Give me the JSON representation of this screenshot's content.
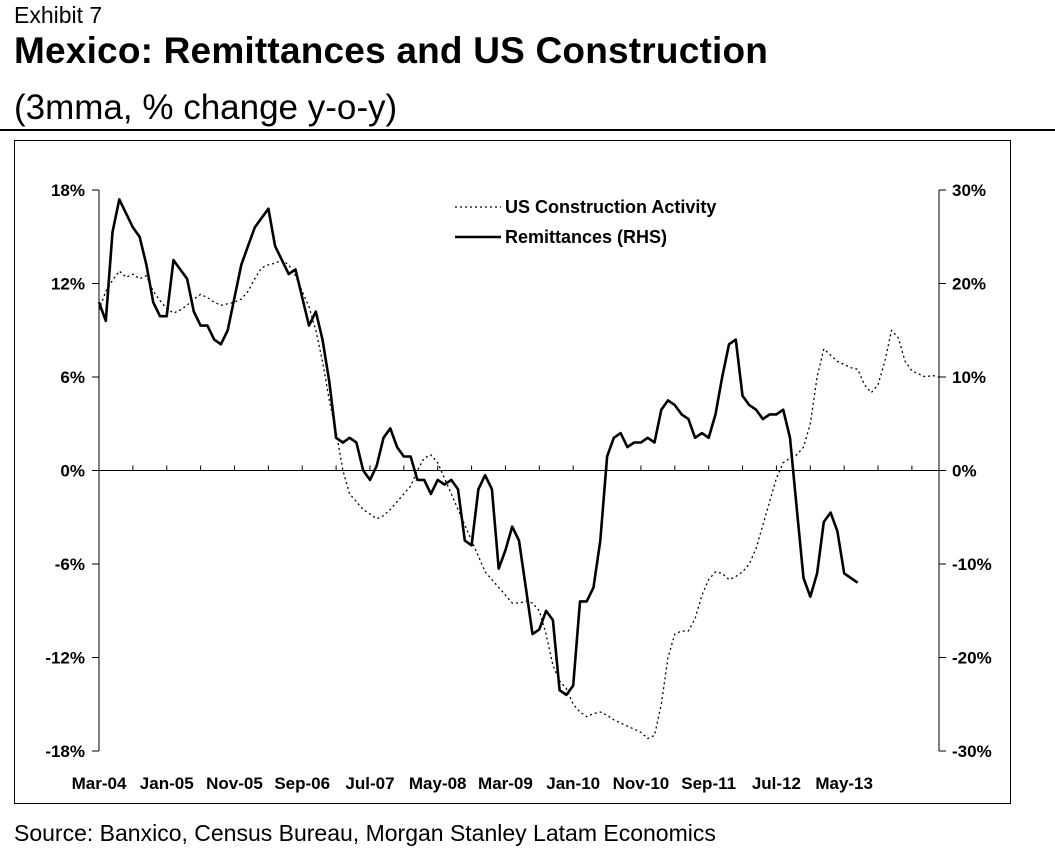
{
  "header": {
    "exhibit": "Exhibit 7",
    "title": "Mexico: Remittances and US Construction",
    "subtitle": "(3mma, % change y-o-y)"
  },
  "footer": {
    "source": "Source: Banxico, Census Bureau, Morgan Stanley Latam Economics"
  },
  "chart_data": {
    "type": "line",
    "title": "Mexico: Remittances and US Construction",
    "subtitle": "(3mma, % change y-o-y)",
    "x_tick_labels": [
      "Mar-04",
      "Jan-05",
      "Nov-05",
      "Sep-06",
      "Jul-07",
      "May-08",
      "Mar-09",
      "Jan-10",
      "Nov-10",
      "Sep-11",
      "Jul-12",
      "May-13"
    ],
    "x_start": "Mar-04",
    "x_end": "Jul-13",
    "left_axis": {
      "ticks": [
        "18%",
        "12%",
        "6%",
        "0%",
        "-6%",
        "-12%",
        "-18%"
      ],
      "ylim": [
        -18,
        18
      ]
    },
    "right_axis": {
      "ticks": [
        "30%",
        "20%",
        "10%",
        "0%",
        "-10%",
        "-20%",
        "-30%"
      ],
      "ylim": [
        -30,
        30
      ]
    },
    "grid": false,
    "legend_position": "top-center",
    "series": [
      {
        "name": "US Construction Activity",
        "axis": "left",
        "style": "dotted",
        "color": "#000000",
        "values": [
          10.3,
          11.5,
          12.2,
          12.8,
          12.4,
          12.6,
          12.3,
          12.5,
          11.5,
          10.9,
          10.4,
          10.1,
          10.3,
          10.6,
          11.0,
          11.3,
          11.1,
          10.8,
          10.6,
          10.7,
          10.8,
          11.0,
          11.5,
          12.3,
          13.0,
          13.2,
          13.3,
          13.5,
          13.2,
          12.5,
          11.5,
          10.5,
          9.0,
          7.0,
          4.5,
          2.5,
          0.0,
          -1.5,
          -2.0,
          -2.5,
          -2.8,
          -3.1,
          -2.9,
          -2.5,
          -2.0,
          -1.5,
          -1.0,
          0.0,
          0.8,
          1.0,
          0.5,
          -0.5,
          -1.5,
          -2.5,
          -3.5,
          -4.5,
          -5.5,
          -6.5,
          -7.0,
          -7.5,
          -8.0,
          -8.5,
          -8.5,
          -8.4,
          -8.5,
          -9.0,
          -10.5,
          -12.5,
          -13.5,
          -14.0,
          -15.0,
          -15.5,
          -15.8,
          -15.6,
          -15.5,
          -15.7,
          -16.0,
          -16.2,
          -16.4,
          -16.6,
          -16.8,
          -17.2,
          -17.0,
          -15.0,
          -12.0,
          -10.5,
          -10.3,
          -10.3,
          -9.5,
          -8.0,
          -7.0,
          -6.5,
          -6.6,
          -7.0,
          -6.8,
          -6.5,
          -6.0,
          -5.0,
          -3.5,
          -2.0,
          -0.5,
          0.5,
          0.8,
          1.0,
          1.5,
          3.0,
          6.0,
          7.8,
          7.4,
          7.0,
          6.8,
          6.6,
          6.5,
          5.5,
          5.0,
          5.5,
          7.0,
          9.0,
          8.5,
          7.0,
          6.4,
          6.2,
          6.0,
          6.1,
          6.0
        ]
      },
      {
        "name": "Remittances (RHS)",
        "axis": "right",
        "style": "solid",
        "color": "#000000",
        "values": [
          18.0,
          16.0,
          25.5,
          29.0,
          27.5,
          26.0,
          25.0,
          22.0,
          18.0,
          16.5,
          16.5,
          22.5,
          21.5,
          20.5,
          17.0,
          15.5,
          15.5,
          14.0,
          13.5,
          15.0,
          18.5,
          22.0,
          24.0,
          26.0,
          27.0,
          28.0,
          24.0,
          22.5,
          21.0,
          21.5,
          18.5,
          15.5,
          17.0,
          14.0,
          9.5,
          3.5,
          3.0,
          3.5,
          3.0,
          0.0,
          -1.0,
          0.5,
          3.5,
          4.5,
          2.5,
          1.5,
          1.5,
          -1.0,
          -1.0,
          -2.5,
          -1.0,
          -1.5,
          -1.0,
          -2.0,
          -7.5,
          -8.0,
          -2.0,
          -0.5,
          -2.0,
          -10.5,
          -8.5,
          -6.0,
          -7.5,
          -12.5,
          -17.5,
          -17.0,
          -15.0,
          -16.0,
          -23.5,
          -24.0,
          -23.0,
          -14.0,
          -14.0,
          -12.5,
          -7.5,
          1.5,
          3.5,
          4.0,
          2.5,
          3.0,
          3.0,
          3.5,
          3.0,
          6.5,
          7.5,
          7.0,
          6.0,
          5.5,
          3.5,
          4.0,
          3.5,
          6.0,
          10.0,
          13.5,
          14.0,
          8.0,
          7.0,
          6.5,
          5.5,
          6.0,
          6.0,
          6.5,
          3.5,
          -4.0,
          -11.5,
          -13.5,
          -11.0,
          -5.5,
          -4.5,
          -6.5,
          -11.0,
          -11.5,
          -12.0
        ]
      }
    ]
  }
}
